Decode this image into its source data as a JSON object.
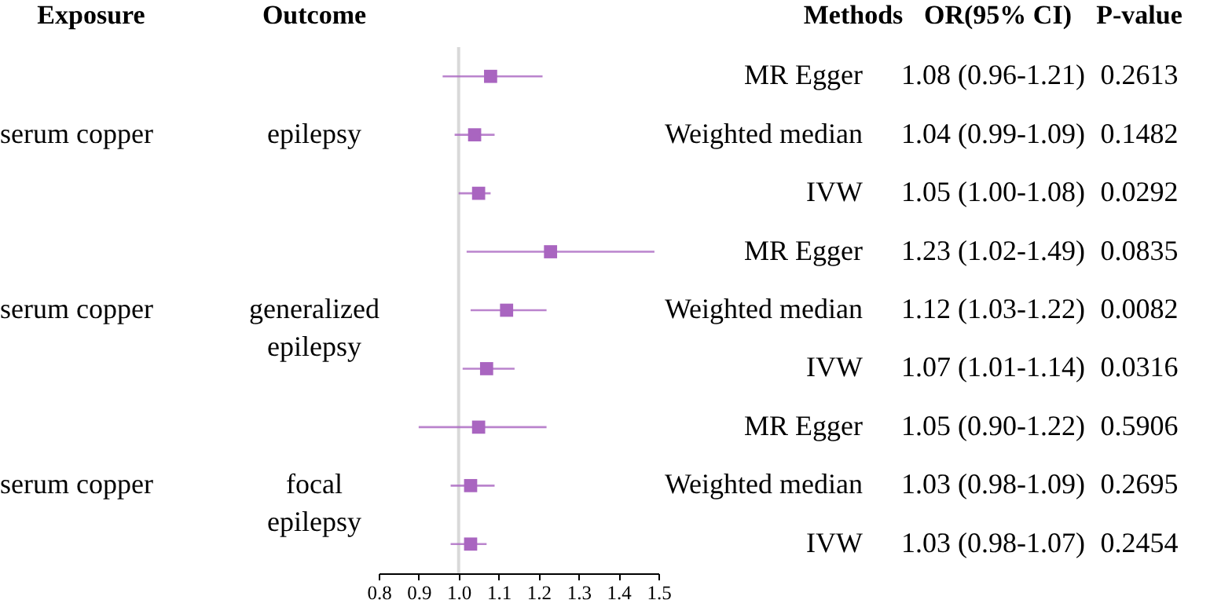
{
  "chart_data": {
    "type": "scatter",
    "orientation": "horizontal",
    "marker": "square",
    "grid": false,
    "categories": [
      "MR Egger",
      "Weighted median",
      "IVW",
      "MR Egger",
      "Weighted median",
      "IVW",
      "MR Egger",
      "Weighted median",
      "IVW"
    ],
    "values": [
      1.08,
      1.04,
      1.05,
      1.23,
      1.12,
      1.07,
      1.05,
      1.03,
      1.03
    ],
    "errors": [
      [
        0.96,
        1.21
      ],
      [
        0.99,
        1.09
      ],
      [
        1.0,
        1.08
      ],
      [
        1.02,
        1.49
      ],
      [
        1.03,
        1.22
      ],
      [
        1.01,
        1.14
      ],
      [
        0.9,
        1.22
      ],
      [
        0.98,
        1.09
      ],
      [
        0.98,
        1.07
      ]
    ],
    "color": "#a965c0",
    "value_labels": [
      "1.08 (0.96-1.21)",
      "1.04 (0.99-1.09)",
      "1.05 (1.00-1.08)",
      "1.23 (1.02-1.49)",
      "1.12 (1.03-1.22)",
      "1.07 (1.01-1.14)",
      "1.05 (0.90-1.22)",
      "1.03 (0.98-1.09)",
      "1.03 (0.98-1.07)"
    ],
    "xlim": [
      0.8,
      1.5
    ],
    "xticks": [
      0.8,
      0.9,
      {
        "value": 1.0,
        "label": "1.0"
      },
      1.1,
      1.2,
      1.3,
      1.4,
      1.5
    ],
    "ref_lines": [
      {
        "axis": "x",
        "value": 1,
        "color": "#d9d9d9"
      }
    ],
    "annotations": [
      "Exposure",
      "Outcome",
      "Methods",
      "OR(95% CI)",
      "P-value",
      "serum copper",
      "epilepsy",
      "serum copper",
      "generalized\nepilepsy",
      "serum copper",
      "focal\nepilepsy",
      "0.2613",
      "0.1482",
      "0.0292",
      "0.0835",
      "0.0082",
      "0.0316",
      "0.5906",
      "0.2695",
      "0.2454"
    ]
  }
}
